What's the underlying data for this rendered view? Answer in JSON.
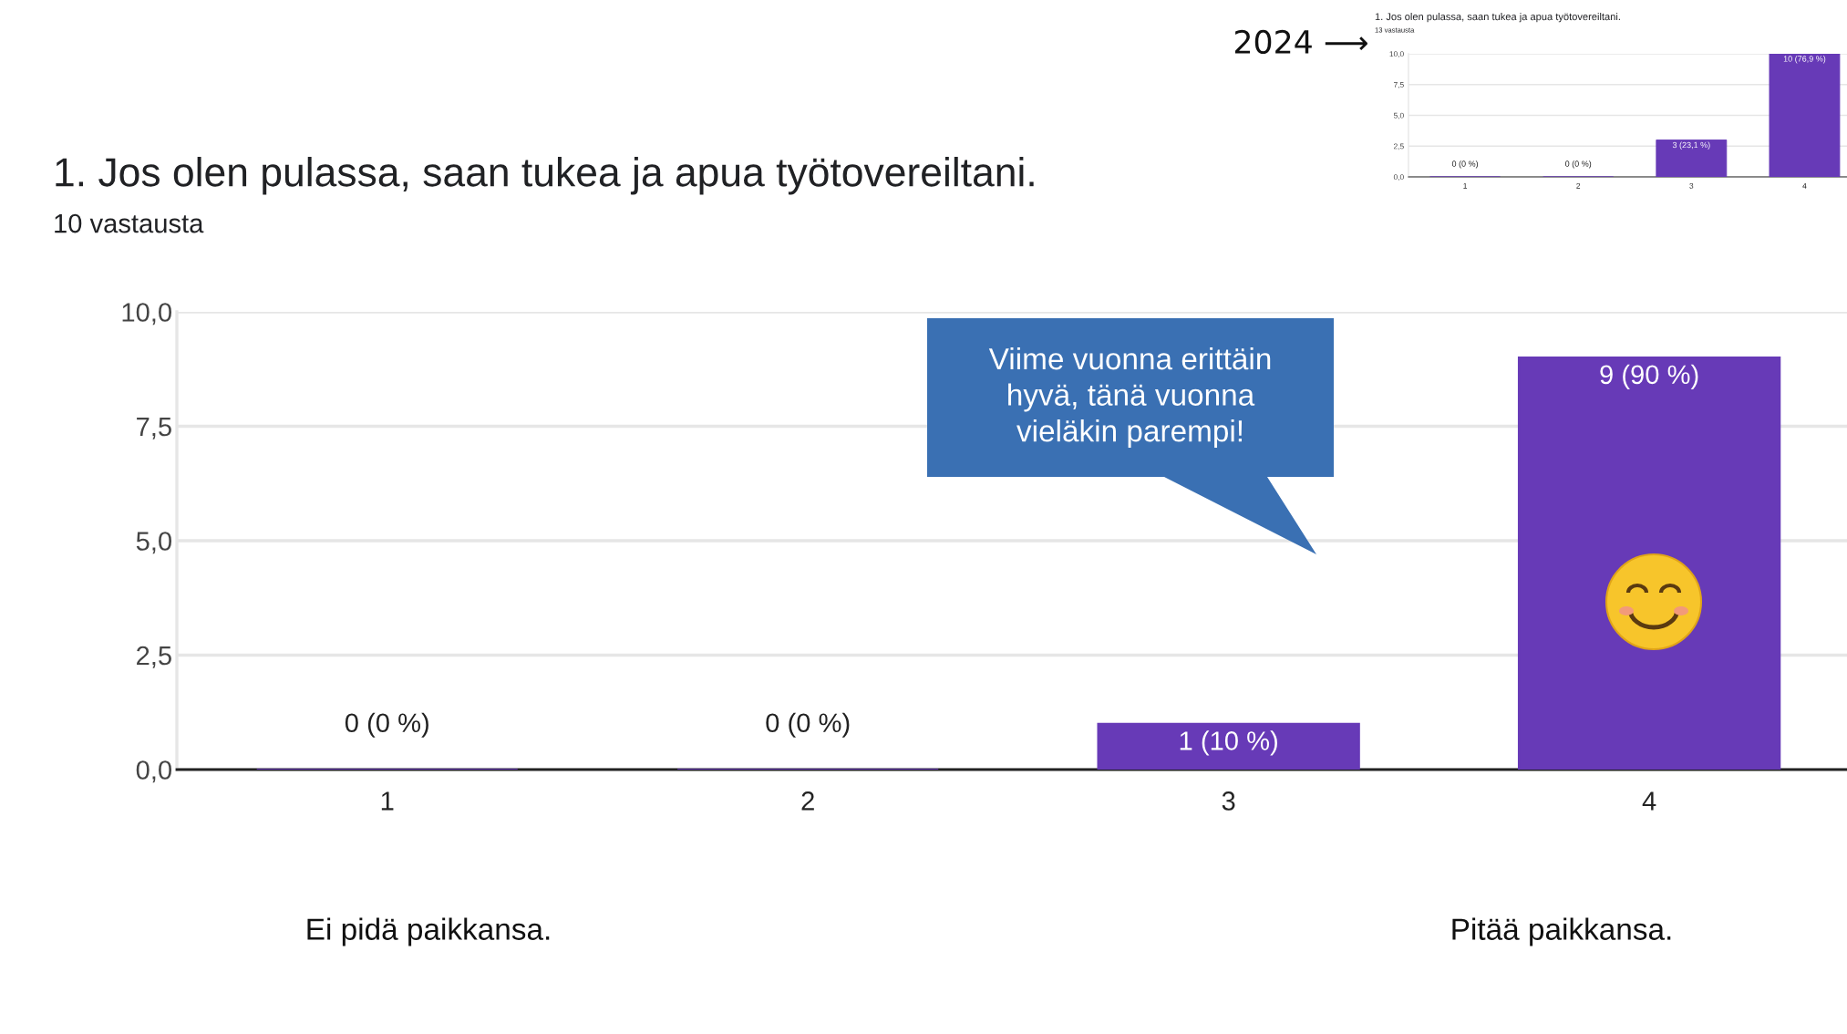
{
  "chart_data": [
    {
      "type": "bar",
      "title": "1. Jos olen pulassa, saan tukea ja apua työtovereiltani.",
      "subtitle": "10 vastausta",
      "categories": [
        "1",
        "2",
        "3",
        "4"
      ],
      "values": [
        0,
        0,
        1,
        9
      ],
      "color": "#673ab7",
      "value_labels": [
        "0 (0 %)",
        "0 (0 %)",
        "1 (10 %)",
        "9 (90 %)"
      ],
      "ylim": [
        0,
        10
      ],
      "yticks": [
        {
          "value": 0,
          "label": "0,0"
        },
        {
          "value": 2.5,
          "label": "2,5"
        },
        {
          "value": 5,
          "label": "5,0"
        },
        {
          "value": 7.5,
          "label": "7,5"
        },
        {
          "value": 10,
          "label": "10,0"
        }
      ],
      "grid": "y",
      "annotations": [
        "Viime vuonna erittäin\nhyvä, tänä vuonna\nvieläkin parempi!",
        "Ei pidä paikkansa.",
        "Pitää paikkansa."
      ]
    },
    {
      "type": "bar",
      "title": "1. Jos olen pulassa, saan tukea ja apua työtovereiltani.",
      "subtitle": "13 vastausta",
      "categories": [
        "1",
        "2",
        "3",
        "4"
      ],
      "values": [
        0,
        0,
        3,
        10
      ],
      "color": "#673ab7",
      "value_labels": [
        "0 (0 %)",
        "0 (0 %)",
        "3 (23,1 %)",
        "10 (76,9 %)"
      ],
      "ylim": [
        0,
        10
      ],
      "yticks": [
        {
          "value": 0,
          "label": "0,0"
        },
        {
          "value": 2.5,
          "label": "2,5"
        },
        {
          "value": 5,
          "label": "5,0"
        },
        {
          "value": 7.5,
          "label": "7,5"
        },
        {
          "value": 10,
          "label": "10,0"
        }
      ],
      "grid": "y",
      "annotations": [
        "2024 ⟶"
      ]
    }
  ]
}
